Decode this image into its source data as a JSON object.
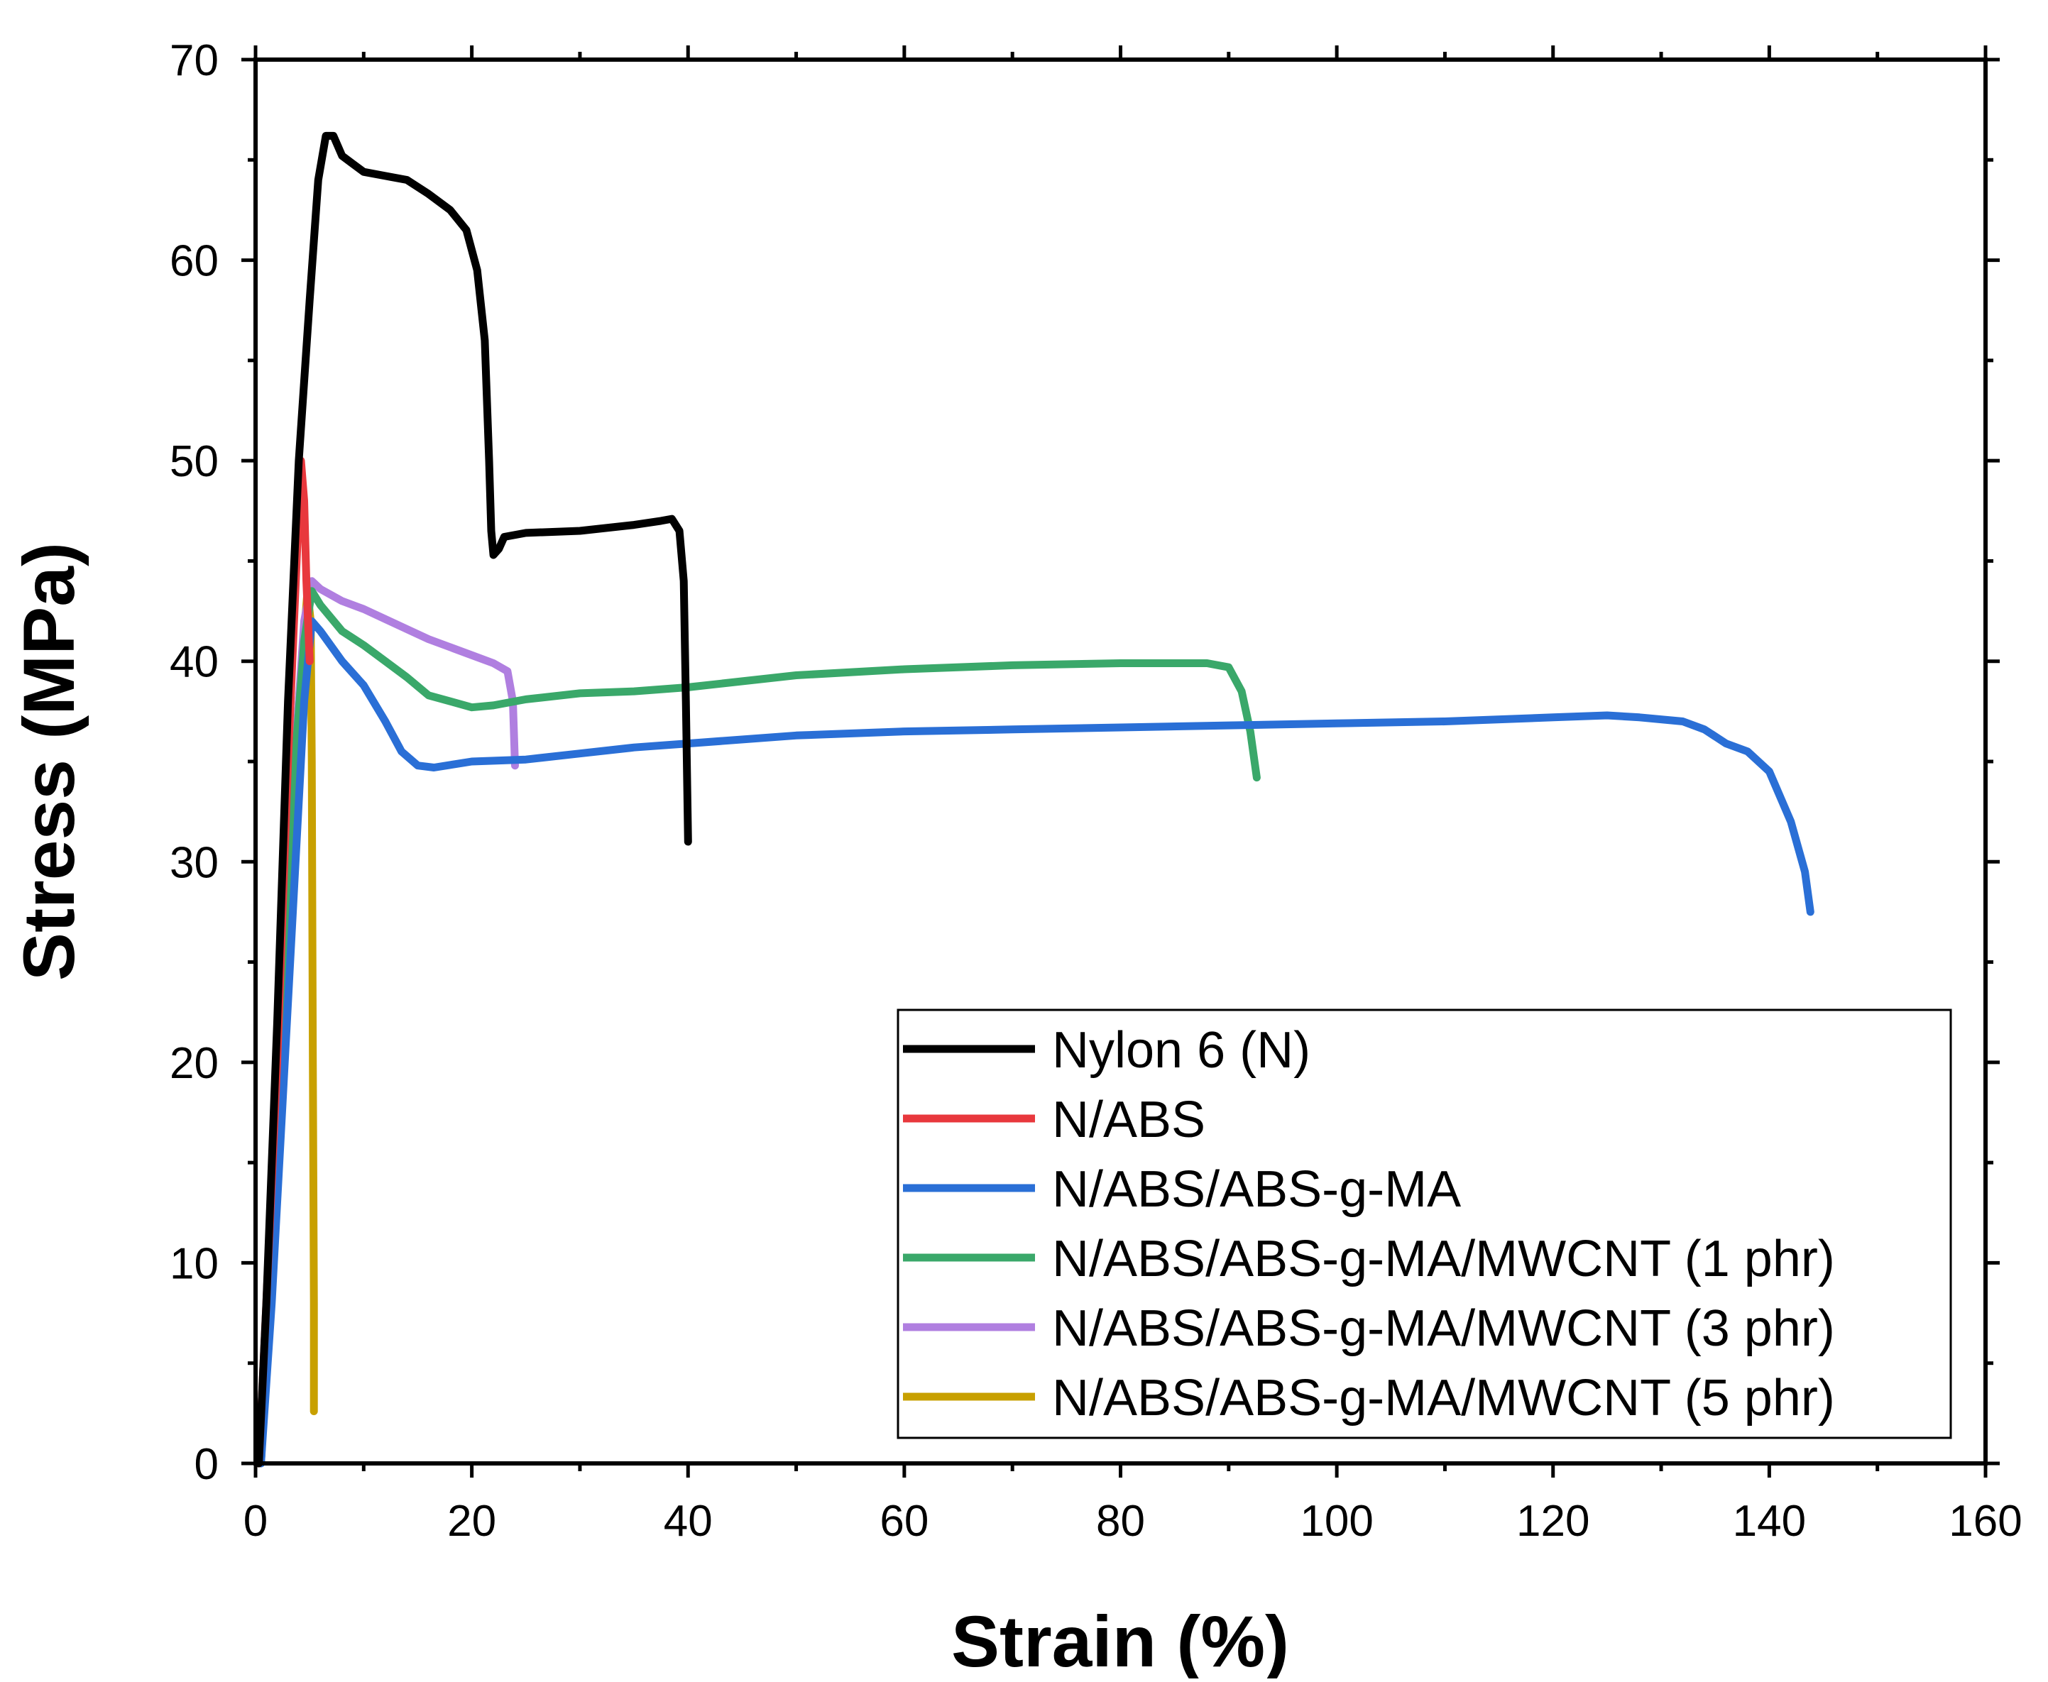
{
  "chart_data": {
    "type": "line",
    "title": "",
    "xlabel": "Strain (%)",
    "ylabel": "Stress (MPa)",
    "xlim": [
      0,
      160
    ],
    "ylim": [
      0,
      70
    ],
    "xticks": [
      0,
      20,
      40,
      60,
      80,
      100,
      120,
      140,
      160
    ],
    "yticks": [
      0,
      10,
      20,
      30,
      40,
      50,
      60,
      70
    ],
    "xtick_labels": [
      "0",
      "20",
      "40",
      "60",
      "80",
      "100",
      "120",
      "140",
      "160"
    ],
    "ytick_labels": [
      "0",
      "10",
      "20",
      "30",
      "40",
      "50",
      "60",
      "70"
    ],
    "grid": false,
    "legend_position": "bottom-right",
    "series": [
      {
        "name": "Nylon 6 (N)",
        "color": "#000000",
        "points": [
          [
            0.3,
            0
          ],
          [
            1,
            8
          ],
          [
            2,
            22
          ],
          [
            3,
            38
          ],
          [
            4,
            50
          ],
          [
            5,
            58
          ],
          [
            5.8,
            64
          ],
          [
            6.5,
            66.2
          ],
          [
            7.2,
            66.2
          ],
          [
            8,
            65.2
          ],
          [
            9,
            64.8
          ],
          [
            10,
            64.4
          ],
          [
            12,
            64.2
          ],
          [
            14,
            64.0
          ],
          [
            16,
            63.3
          ],
          [
            18,
            62.5
          ],
          [
            19.5,
            61.5
          ],
          [
            20.5,
            59.5
          ],
          [
            21.2,
            56
          ],
          [
            21.6,
            50
          ],
          [
            21.8,
            46.5
          ],
          [
            22,
            45.3
          ],
          [
            22.5,
            45.6
          ],
          [
            23,
            46.2
          ],
          [
            25,
            46.4
          ],
          [
            30,
            46.5
          ],
          [
            35,
            46.8
          ],
          [
            37.5,
            47.0
          ],
          [
            38.5,
            47.1
          ],
          [
            39.2,
            46.5
          ],
          [
            39.6,
            44
          ],
          [
            39.8,
            38
          ],
          [
            40,
            31
          ]
        ]
      },
      {
        "name": "N/ABS",
        "color": "#e8383d",
        "points": [
          [
            0.3,
            0
          ],
          [
            1,
            8
          ],
          [
            2,
            20
          ],
          [
            3,
            35
          ],
          [
            3.8,
            45
          ],
          [
            4.2,
            50
          ],
          [
            4.5,
            48
          ],
          [
            4.7,
            44
          ],
          [
            5,
            40
          ]
        ]
      },
      {
        "name": "N/ABS/ABS-g-MA",
        "color": "#2a6fd6",
        "points": [
          [
            0.5,
            0
          ],
          [
            1.5,
            8
          ],
          [
            2.5,
            18
          ],
          [
            3.5,
            28
          ],
          [
            4.5,
            38
          ],
          [
            5.2,
            42
          ],
          [
            6,
            41.5
          ],
          [
            8,
            40
          ],
          [
            10,
            38.8
          ],
          [
            12,
            37
          ],
          [
            13.5,
            35.5
          ],
          [
            15,
            34.8
          ],
          [
            16.5,
            34.7
          ],
          [
            20,
            35
          ],
          [
            25,
            35.1
          ],
          [
            30,
            35.4
          ],
          [
            35,
            35.7
          ],
          [
            40,
            35.9
          ],
          [
            50,
            36.3
          ],
          [
            60,
            36.5
          ],
          [
            70,
            36.6
          ],
          [
            80,
            36.7
          ],
          [
            90,
            36.8
          ],
          [
            100,
            36.9
          ],
          [
            110,
            37.0
          ],
          [
            120,
            37.2
          ],
          [
            125,
            37.3
          ],
          [
            128,
            37.2
          ],
          [
            132,
            37.0
          ],
          [
            134,
            36.6
          ],
          [
            136,
            35.9
          ],
          [
            138,
            35.5
          ],
          [
            140,
            34.5
          ],
          [
            142,
            32
          ],
          [
            143.3,
            29.5
          ],
          [
            143.8,
            27.5
          ]
        ]
      },
      {
        "name": "N/ABS/ABS-g-MA/MWCNT (1 phr)",
        "color": "#3aa86a",
        "points": [
          [
            0.5,
            0
          ],
          [
            1.5,
            10
          ],
          [
            2.5,
            22
          ],
          [
            3.5,
            34
          ],
          [
            4.5,
            41
          ],
          [
            5.2,
            43.5
          ],
          [
            6,
            42.8
          ],
          [
            8,
            41.5
          ],
          [
            10,
            40.8
          ],
          [
            12,
            40
          ],
          [
            14,
            39.2
          ],
          [
            16,
            38.3
          ],
          [
            18,
            38
          ],
          [
            20,
            37.7
          ],
          [
            22,
            37.8
          ],
          [
            25,
            38.1
          ],
          [
            30,
            38.4
          ],
          [
            35,
            38.5
          ],
          [
            40,
            38.7
          ],
          [
            50,
            39.3
          ],
          [
            60,
            39.6
          ],
          [
            70,
            39.8
          ],
          [
            80,
            39.9
          ],
          [
            88,
            39.9
          ],
          [
            90,
            39.7
          ],
          [
            91.2,
            38.5
          ],
          [
            92,
            36.5
          ],
          [
            92.6,
            34.2
          ]
        ]
      },
      {
        "name": "N/ABS/ABS-g-MA/MWCNT (3 phr)",
        "color": "#b07fe0",
        "points": [
          [
            0.5,
            0
          ],
          [
            1.5,
            10
          ],
          [
            2.5,
            22
          ],
          [
            3.5,
            34
          ],
          [
            4.5,
            42
          ],
          [
            5.2,
            44
          ],
          [
            6,
            43.6
          ],
          [
            8,
            43
          ],
          [
            10,
            42.6
          ],
          [
            12,
            42.1
          ],
          [
            14,
            41.6
          ],
          [
            16,
            41.1
          ],
          [
            18,
            40.7
          ],
          [
            20,
            40.3
          ],
          [
            22,
            39.9
          ],
          [
            23.3,
            39.5
          ],
          [
            23.8,
            38
          ],
          [
            24,
            34.8
          ]
        ]
      },
      {
        "name": "N/ABS/ABS-g-MA/MWCNT (5 phr)",
        "color": "#c8a000",
        "points": [
          [
            0.4,
            0
          ],
          [
            1,
            5
          ],
          [
            2,
            16
          ],
          [
            3,
            28
          ],
          [
            4,
            38
          ],
          [
            4.8,
            43.5
          ],
          [
            5.1,
            42
          ],
          [
            5.2,
            35
          ],
          [
            5.3,
            20
          ],
          [
            5.4,
            8
          ],
          [
            5.4,
            2.6
          ]
        ]
      }
    ]
  }
}
